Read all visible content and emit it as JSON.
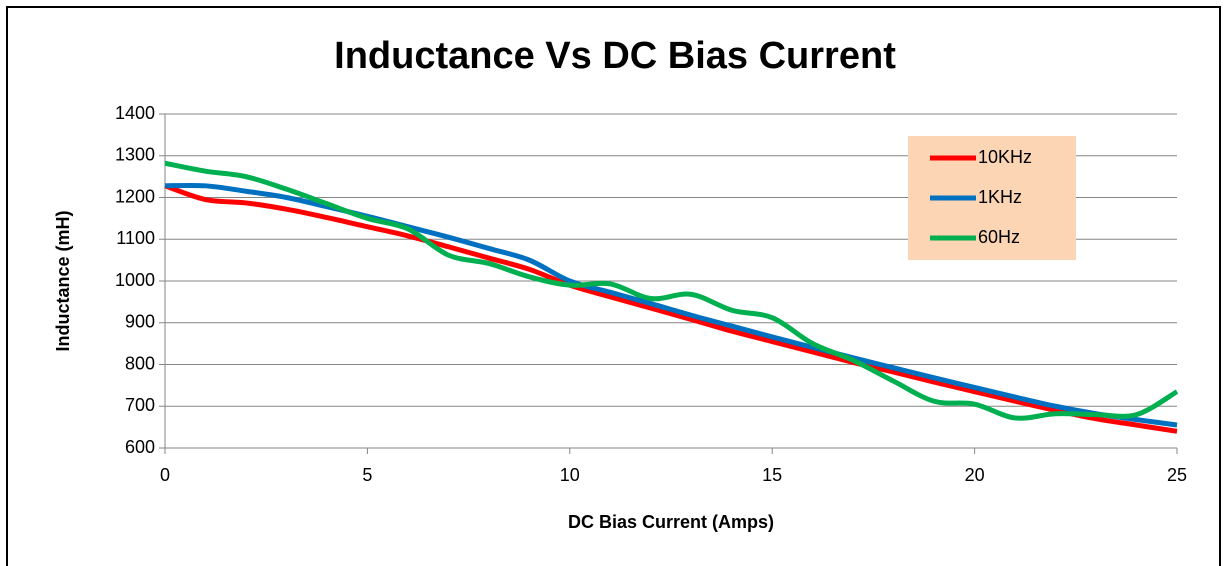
{
  "chart_data": {
    "type": "line",
    "title": "Inductance Vs DC Bias Current",
    "x_label": "DC Bias Current (Amps)",
    "y_label": "Inductance (mH)",
    "x": [
      0,
      1,
      2,
      3,
      4,
      5,
      6,
      7,
      8,
      9,
      10,
      11,
      12,
      13,
      14,
      15,
      16,
      17,
      18,
      19,
      20,
      21,
      22,
      23,
      24,
      25
    ],
    "series": [
      {
        "name": "10KHz",
        "color": "#ff0000",
        "values": [
          1228,
          1195,
          1187,
          1172,
          1152,
          1130,
          1108,
          1082,
          1055,
          1028,
          990,
          962,
          935,
          908,
          880,
          855,
          830,
          805,
          782,
          758,
          735,
          712,
          690,
          670,
          655,
          640
        ]
      },
      {
        "name": "1KHz",
        "color": "#0070c0",
        "values": [
          1228,
          1228,
          1215,
          1200,
          1178,
          1155,
          1130,
          1105,
          1078,
          1050,
          1000,
          973,
          946,
          918,
          892,
          866,
          841,
          816,
          792,
          768,
          745,
          722,
          700,
          682,
          668,
          655
        ]
      },
      {
        "name": "60Hz",
        "color": "#00b050",
        "values": [
          1282,
          1263,
          1250,
          1220,
          1185,
          1150,
          1125,
          1062,
          1042,
          1010,
          990,
          993,
          958,
          968,
          930,
          912,
          850,
          810,
          760,
          712,
          705,
          672,
          682,
          680,
          680,
          735
        ]
      }
    ],
    "xlim": [
      0,
      25
    ],
    "xticks": [
      0,
      5,
      10,
      15,
      20,
      25
    ],
    "ylim": [
      600,
      1400
    ],
    "yticks": [
      600,
      700,
      800,
      900,
      1000,
      1100,
      1200,
      1300,
      1400
    ],
    "grid": true,
    "legend": "upper right",
    "legend_background": "#fcd5b5"
  }
}
